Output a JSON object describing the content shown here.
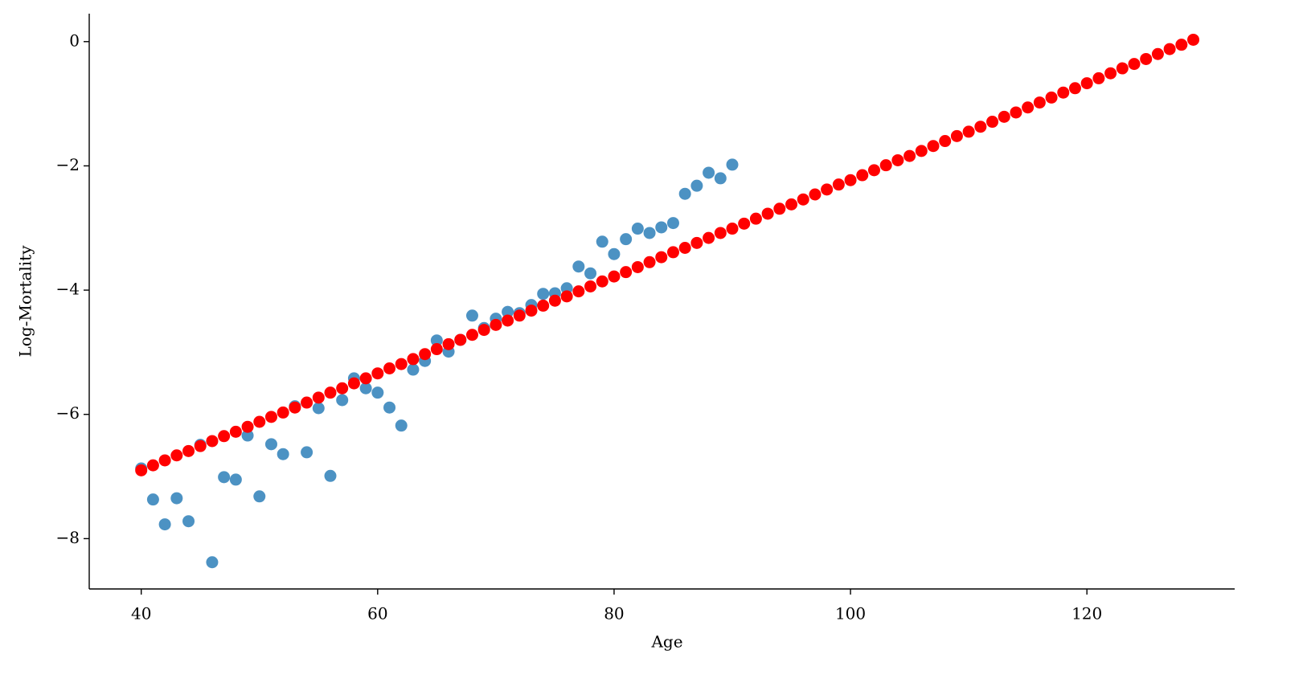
{
  "chart_data": {
    "type": "scatter",
    "x_label": "Age",
    "y_label": "Log-Mortality",
    "xlim": [
      35.6,
      132.5
    ],
    "ylim": [
      -8.81,
      0.45
    ],
    "xticks": [
      40,
      60,
      80,
      100,
      120
    ],
    "yticks": [
      {
        "value": -8,
        "label": "−8"
      },
      {
        "value": -6,
        "label": "−6"
      },
      {
        "value": -4,
        "label": "−4"
      },
      {
        "value": -2,
        "label": "−2"
      },
      0
    ],
    "grid": false,
    "series": [
      {
        "color": "#1f77b4",
        "opacity": 0.8,
        "x": [
          40,
          41,
          42,
          43,
          44,
          45,
          46,
          47,
          48,
          49,
          50,
          51,
          52,
          53,
          54,
          55,
          56,
          57,
          58,
          59,
          60,
          61,
          62,
          63,
          64,
          65,
          66,
          67,
          68,
          69,
          70,
          71,
          72,
          73,
          74,
          75,
          76,
          77,
          78,
          79,
          80,
          81,
          82,
          83,
          84,
          85,
          86,
          87,
          88,
          89,
          90
        ],
        "values": [
          -6.87,
          -7.37,
          -7.77,
          -7.35,
          -7.72,
          -6.49,
          -8.38,
          -7.01,
          -7.05,
          -6.34,
          -7.32,
          -6.48,
          -6.64,
          -5.87,
          -6.61,
          -5.9,
          -6.99,
          -5.77,
          -5.42,
          -5.58,
          -5.65,
          -5.89,
          -6.18,
          -5.28,
          -5.14,
          -4.81,
          -4.99,
          -4.8,
          -4.41,
          -4.61,
          -4.46,
          -4.35,
          -4.37,
          -4.24,
          -4.06,
          -4.05,
          -3.97,
          -3.62,
          -3.73,
          -3.22,
          -3.42,
          -3.18,
          -3.01,
          -3.08,
          -2.99,
          -2.92,
          -2.45,
          -2.32,
          -2.11,
          -2.2,
          -1.98
        ]
      },
      {
        "color": "#ff0000",
        "opacity": 1,
        "x": [
          40,
          41,
          42,
          43,
          44,
          45,
          46,
          47,
          48,
          49,
          50,
          51,
          52,
          53,
          54,
          55,
          56,
          57,
          58,
          59,
          60,
          61,
          62,
          63,
          64,
          65,
          66,
          67,
          68,
          69,
          70,
          71,
          72,
          73,
          74,
          75,
          76,
          77,
          78,
          79,
          80,
          81,
          82,
          83,
          84,
          85,
          86,
          87,
          88,
          89,
          90,
          91,
          92,
          93,
          94,
          95,
          96,
          97,
          98,
          99,
          100,
          101,
          102,
          103,
          104,
          105,
          106,
          107,
          108,
          109,
          110,
          111,
          112,
          113,
          114,
          115,
          116,
          117,
          118,
          119,
          120,
          121,
          122,
          123,
          124,
          125,
          126,
          127,
          128,
          129
        ],
        "values": [
          -6.9,
          -6.82,
          -6.74,
          -6.66,
          -6.59,
          -6.51,
          -6.43,
          -6.35,
          -6.28,
          -6.2,
          -6.12,
          -6.04,
          -5.97,
          -5.89,
          -5.81,
          -5.73,
          -5.65,
          -5.58,
          -5.5,
          -5.42,
          -5.34,
          -5.26,
          -5.19,
          -5.11,
          -5.03,
          -4.95,
          -4.87,
          -4.8,
          -4.72,
          -4.64,
          -4.56,
          -4.49,
          -4.41,
          -4.33,
          -4.25,
          -4.17,
          -4.1,
          -4.02,
          -3.94,
          -3.86,
          -3.78,
          -3.71,
          -3.63,
          -3.55,
          -3.47,
          -3.39,
          -3.32,
          -3.24,
          -3.16,
          -3.08,
          -3.01,
          -2.93,
          -2.85,
          -2.77,
          -2.69,
          -2.62,
          -2.54,
          -2.46,
          -2.38,
          -2.3,
          -2.23,
          -2.15,
          -2.07,
          -1.99,
          -1.91,
          -1.84,
          -1.76,
          -1.68,
          -1.6,
          -1.52,
          -1.45,
          -1.37,
          -1.29,
          -1.21,
          -1.14,
          -1.06,
          -0.98,
          -0.9,
          -0.82,
          -0.75,
          -0.67,
          -0.59,
          -0.51,
          -0.43,
          -0.36,
          -0.28,
          -0.2,
          -0.12,
          -0.05,
          0.03
        ]
      }
    ]
  }
}
